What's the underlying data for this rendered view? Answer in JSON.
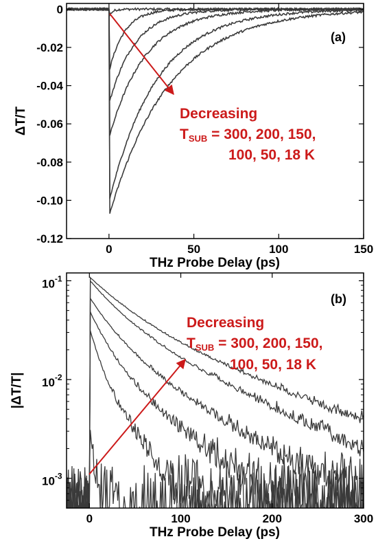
{
  "colors": {
    "trace": "#3a3a3a",
    "annotation": "#cc1a1a",
    "axis": "#000000"
  },
  "chart_data": [
    {
      "type": "line",
      "panel_label": "(a)",
      "xlabel": "THz Probe Delay (ps)",
      "ylabel": "ΔT/T",
      "xlim": [
        -25,
        150
      ],
      "ylim": [
        -0.12,
        0.003
      ],
      "yscale": "linear",
      "x_ticks": [
        0,
        50,
        100,
        150
      ],
      "x_tick_labels": [
        "0",
        "50",
        "100",
        "150"
      ],
      "y_ticks": [
        0,
        -0.02,
        -0.04,
        -0.06,
        -0.08,
        -0.1,
        -0.12
      ],
      "y_tick_labels": [
        "0",
        "-0.02",
        "-0.04",
        "-0.06",
        "-0.08",
        "-0.10",
        "-0.12"
      ],
      "grid": false,
      "series": [
        {
          "peak_delay_ps": 0.5,
          "peak_value": -0.003,
          "decay_ps": 2
        },
        {
          "peak_delay_ps": 0.5,
          "peak_value": -0.031,
          "decay_ps": 9
        },
        {
          "peak_delay_ps": 0.5,
          "peak_value": -0.048,
          "decay_ps": 15
        },
        {
          "peak_delay_ps": 0.5,
          "peak_value": -0.066,
          "decay_ps": 21
        },
        {
          "peak_delay_ps": 0.5,
          "peak_value": -0.099,
          "decay_ps": 28
        },
        {
          "peak_delay_ps": 0.5,
          "peak_value": -0.107,
          "decay_ps": 35
        }
      ],
      "annotation": {
        "line1": "Decreasing",
        "t_main": "T",
        "t_sub": "SUB",
        "line2_rest": " = 300, 200, 150,",
        "line3": "100, 50, 18 K"
      }
    },
    {
      "type": "line",
      "panel_label": "(b)",
      "xlabel": "THz Probe Delay (ps)",
      "ylabel": "|ΔT/T|",
      "xlim": [
        -25,
        300
      ],
      "ylim": [
        0.0005,
        0.12
      ],
      "yscale": "log",
      "x_ticks": [
        0,
        100,
        200,
        300
      ],
      "x_tick_labels": [
        "0",
        "100",
        "200",
        "300"
      ],
      "y_ticks": [
        0.001,
        0.01,
        0.1
      ],
      "y_tick_labels": [
        {
          "base": "10",
          "exp": "-3"
        },
        {
          "base": "10",
          "exp": "-2"
        },
        {
          "base": "10",
          "exp": "-1"
        }
      ],
      "grid": false,
      "series": [
        {
          "peak_value": 0.003,
          "decay_ps": 2
        },
        {
          "peak_value": 0.031,
          "decay_ps": 9
        },
        {
          "peak_value": 0.048,
          "decay_ps": 15
        },
        {
          "peak_value": 0.066,
          "decay_ps": 21
        },
        {
          "peak_value": 0.099,
          "decay_ps": 28
        },
        {
          "peak_value": 0.107,
          "decay_ps": 35
        }
      ],
      "annotation": {
        "line1": "Decreasing",
        "t_main": "T",
        "t_sub": "SUB",
        "line2_rest": " = 300, 200, 150,",
        "line3": "100, 50, 18 K"
      }
    }
  ]
}
